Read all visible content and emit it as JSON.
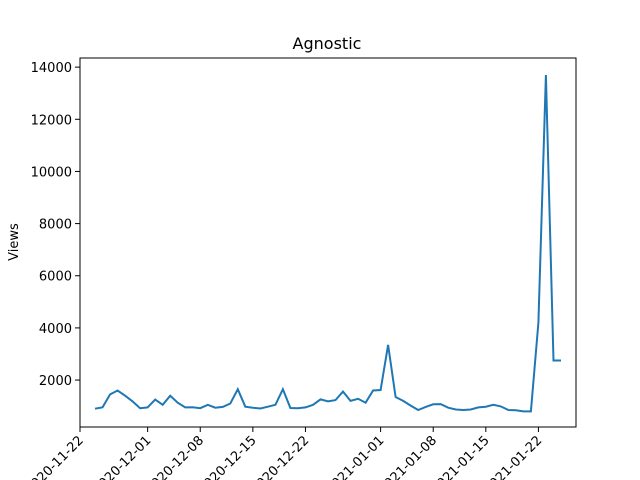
{
  "chart_data": {
    "type": "line",
    "title": "Agnostic",
    "xlabel": "",
    "ylabel": "Views",
    "x_tick_labels": [
      "2020-11-22",
      "2020-12-01",
      "2020-12-08",
      "2020-12-15",
      "2020-12-22",
      "2021-01-01",
      "2021-01-08",
      "2021-01-15",
      "2021-01-22"
    ],
    "y_tick_labels": [
      "2000",
      "4000",
      "6000",
      "8000",
      "10000",
      "12000",
      "14000"
    ],
    "ylim": [
      200,
      14350
    ],
    "xlim": [
      "2020-11-22",
      "2021-01-27"
    ],
    "grid": false,
    "line_color": "#1f77b4",
    "series": [
      {
        "x": [
          "2020-11-24",
          "2020-11-25",
          "2020-11-26",
          "2020-11-27",
          "2020-11-28",
          "2020-11-29",
          "2020-11-30",
          "2020-12-01",
          "2020-12-02",
          "2020-12-03",
          "2020-12-04",
          "2020-12-05",
          "2020-12-06",
          "2020-12-07",
          "2020-12-08",
          "2020-12-09",
          "2020-12-10",
          "2020-12-11",
          "2020-12-12",
          "2020-12-13",
          "2020-12-14",
          "2020-12-15",
          "2020-12-16",
          "2020-12-17",
          "2020-12-18",
          "2020-12-19",
          "2020-12-20",
          "2020-12-21",
          "2020-12-22",
          "2020-12-23",
          "2020-12-24",
          "2020-12-25",
          "2020-12-26",
          "2020-12-27",
          "2020-12-28",
          "2020-12-29",
          "2020-12-30",
          "2020-12-31",
          "2021-01-01",
          "2021-01-02",
          "2021-01-03",
          "2021-01-04",
          "2021-01-05",
          "2021-01-06",
          "2021-01-07",
          "2021-01-08",
          "2021-01-09",
          "2021-01-10",
          "2021-01-11",
          "2021-01-12",
          "2021-01-13",
          "2021-01-14",
          "2021-01-15",
          "2021-01-16",
          "2021-01-17",
          "2021-01-18",
          "2021-01-19",
          "2021-01-20",
          "2021-01-21",
          "2021-01-22",
          "2021-01-23",
          "2021-01-24",
          "2021-01-25"
        ],
        "y": [
          900,
          950,
          1450,
          1600,
          1400,
          1180,
          920,
          950,
          1250,
          1050,
          1400,
          1130,
          950,
          960,
          920,
          1050,
          940,
          970,
          1100,
          1650,
          980,
          940,
          910,
          980,
          1050,
          1650,
          930,
          920,
          950,
          1050,
          1260,
          1180,
          1230,
          1560,
          1200,
          1280,
          1130,
          1600,
          1620,
          3350,
          1350,
          1200,
          1020,
          850,
          970,
          1070,
          1080,
          940,
          870,
          850,
          870,
          950,
          980,
          1050,
          990,
          850,
          840,
          800,
          800,
          4200,
          13700,
          2750,
          2750
        ]
      }
    ]
  }
}
